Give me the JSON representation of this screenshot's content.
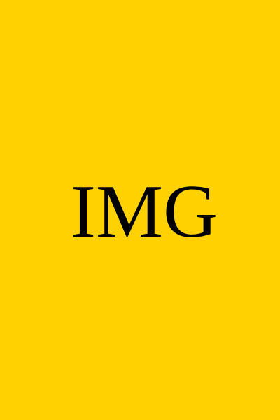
{
  "placeholder": {
    "label": "IMG",
    "background_color": "#FFD100",
    "text_color": "#000000"
  }
}
